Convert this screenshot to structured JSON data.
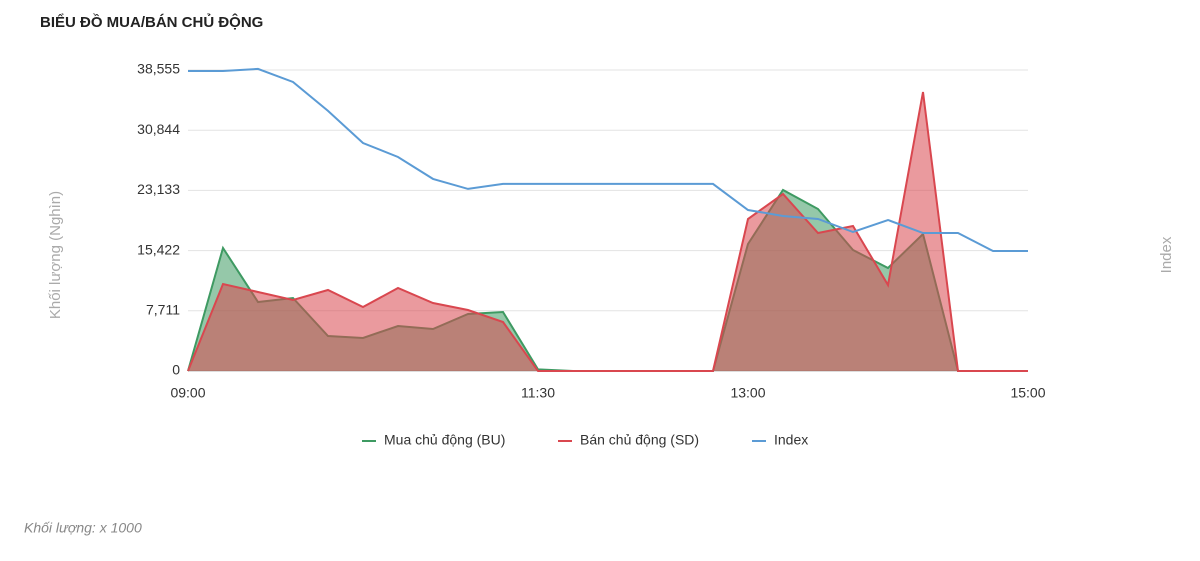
{
  "chart_data": {
    "type": "area",
    "title": "BIỂU ĐỒ MUA/BÁN CHỦ ĐỘNG",
    "ylabel": "Khối lượng (Nghìn)",
    "y2label": "Index",
    "note": "Khối lượng: x 1000",
    "categories": [
      "09:00",
      null,
      null,
      null,
      null,
      null,
      null,
      null,
      null,
      null,
      "11:30",
      null,
      null,
      null,
      null,
      null,
      "13:00",
      null,
      null,
      null,
      null,
      null,
      null,
      null,
      "15:00"
    ],
    "ylim": [
      0,
      38555
    ],
    "yticks": [
      0,
      {
        "value": 7711,
        "label": "7,711"
      },
      {
        "value": 15422,
        "label": "15,422"
      },
      {
        "value": 23133,
        "label": "23,133"
      },
      {
        "value": 30844,
        "label": "30,844"
      },
      {
        "value": 38555,
        "label": "38,555"
      }
    ],
    "y2lim": [
      0,
      38555
    ],
    "grid": true,
    "series": [
      {
        "name": "Mua chủ động (BU)",
        "color": "#3e9a62",
        "values": [
          0,
          15750,
          8840,
          9350,
          4480,
          4230,
          5760,
          5380,
          7300,
          7560,
          200,
          0,
          0,
          0,
          0,
          0,
          16270,
          23190,
          20750,
          15500,
          13190,
          17550,
          0,
          0,
          0
        ]
      },
      {
        "name": "Bán chủ động (SD)",
        "color": "#d9474f",
        "values": [
          0,
          11140,
          10120,
          9100,
          10380,
          8200,
          10630,
          8710,
          7810,
          6280,
          0,
          0,
          0,
          0,
          0,
          0,
          19470,
          22670,
          17680,
          18570,
          11020,
          35740,
          0,
          0,
          0
        ]
      },
      {
        "name": "Index",
        "color": "#5b9bd5",
        "axis": "y2",
        "line_only": true,
        "values": [
          38430,
          38430,
          38690,
          37020,
          33310,
          29210,
          27410,
          24600,
          23320,
          23960,
          23960,
          23960,
          23960,
          23960,
          23960,
          23960,
          20620,
          19860,
          19470,
          17810,
          19340,
          17680,
          17680,
          15370,
          15370
        ]
      }
    ]
  }
}
